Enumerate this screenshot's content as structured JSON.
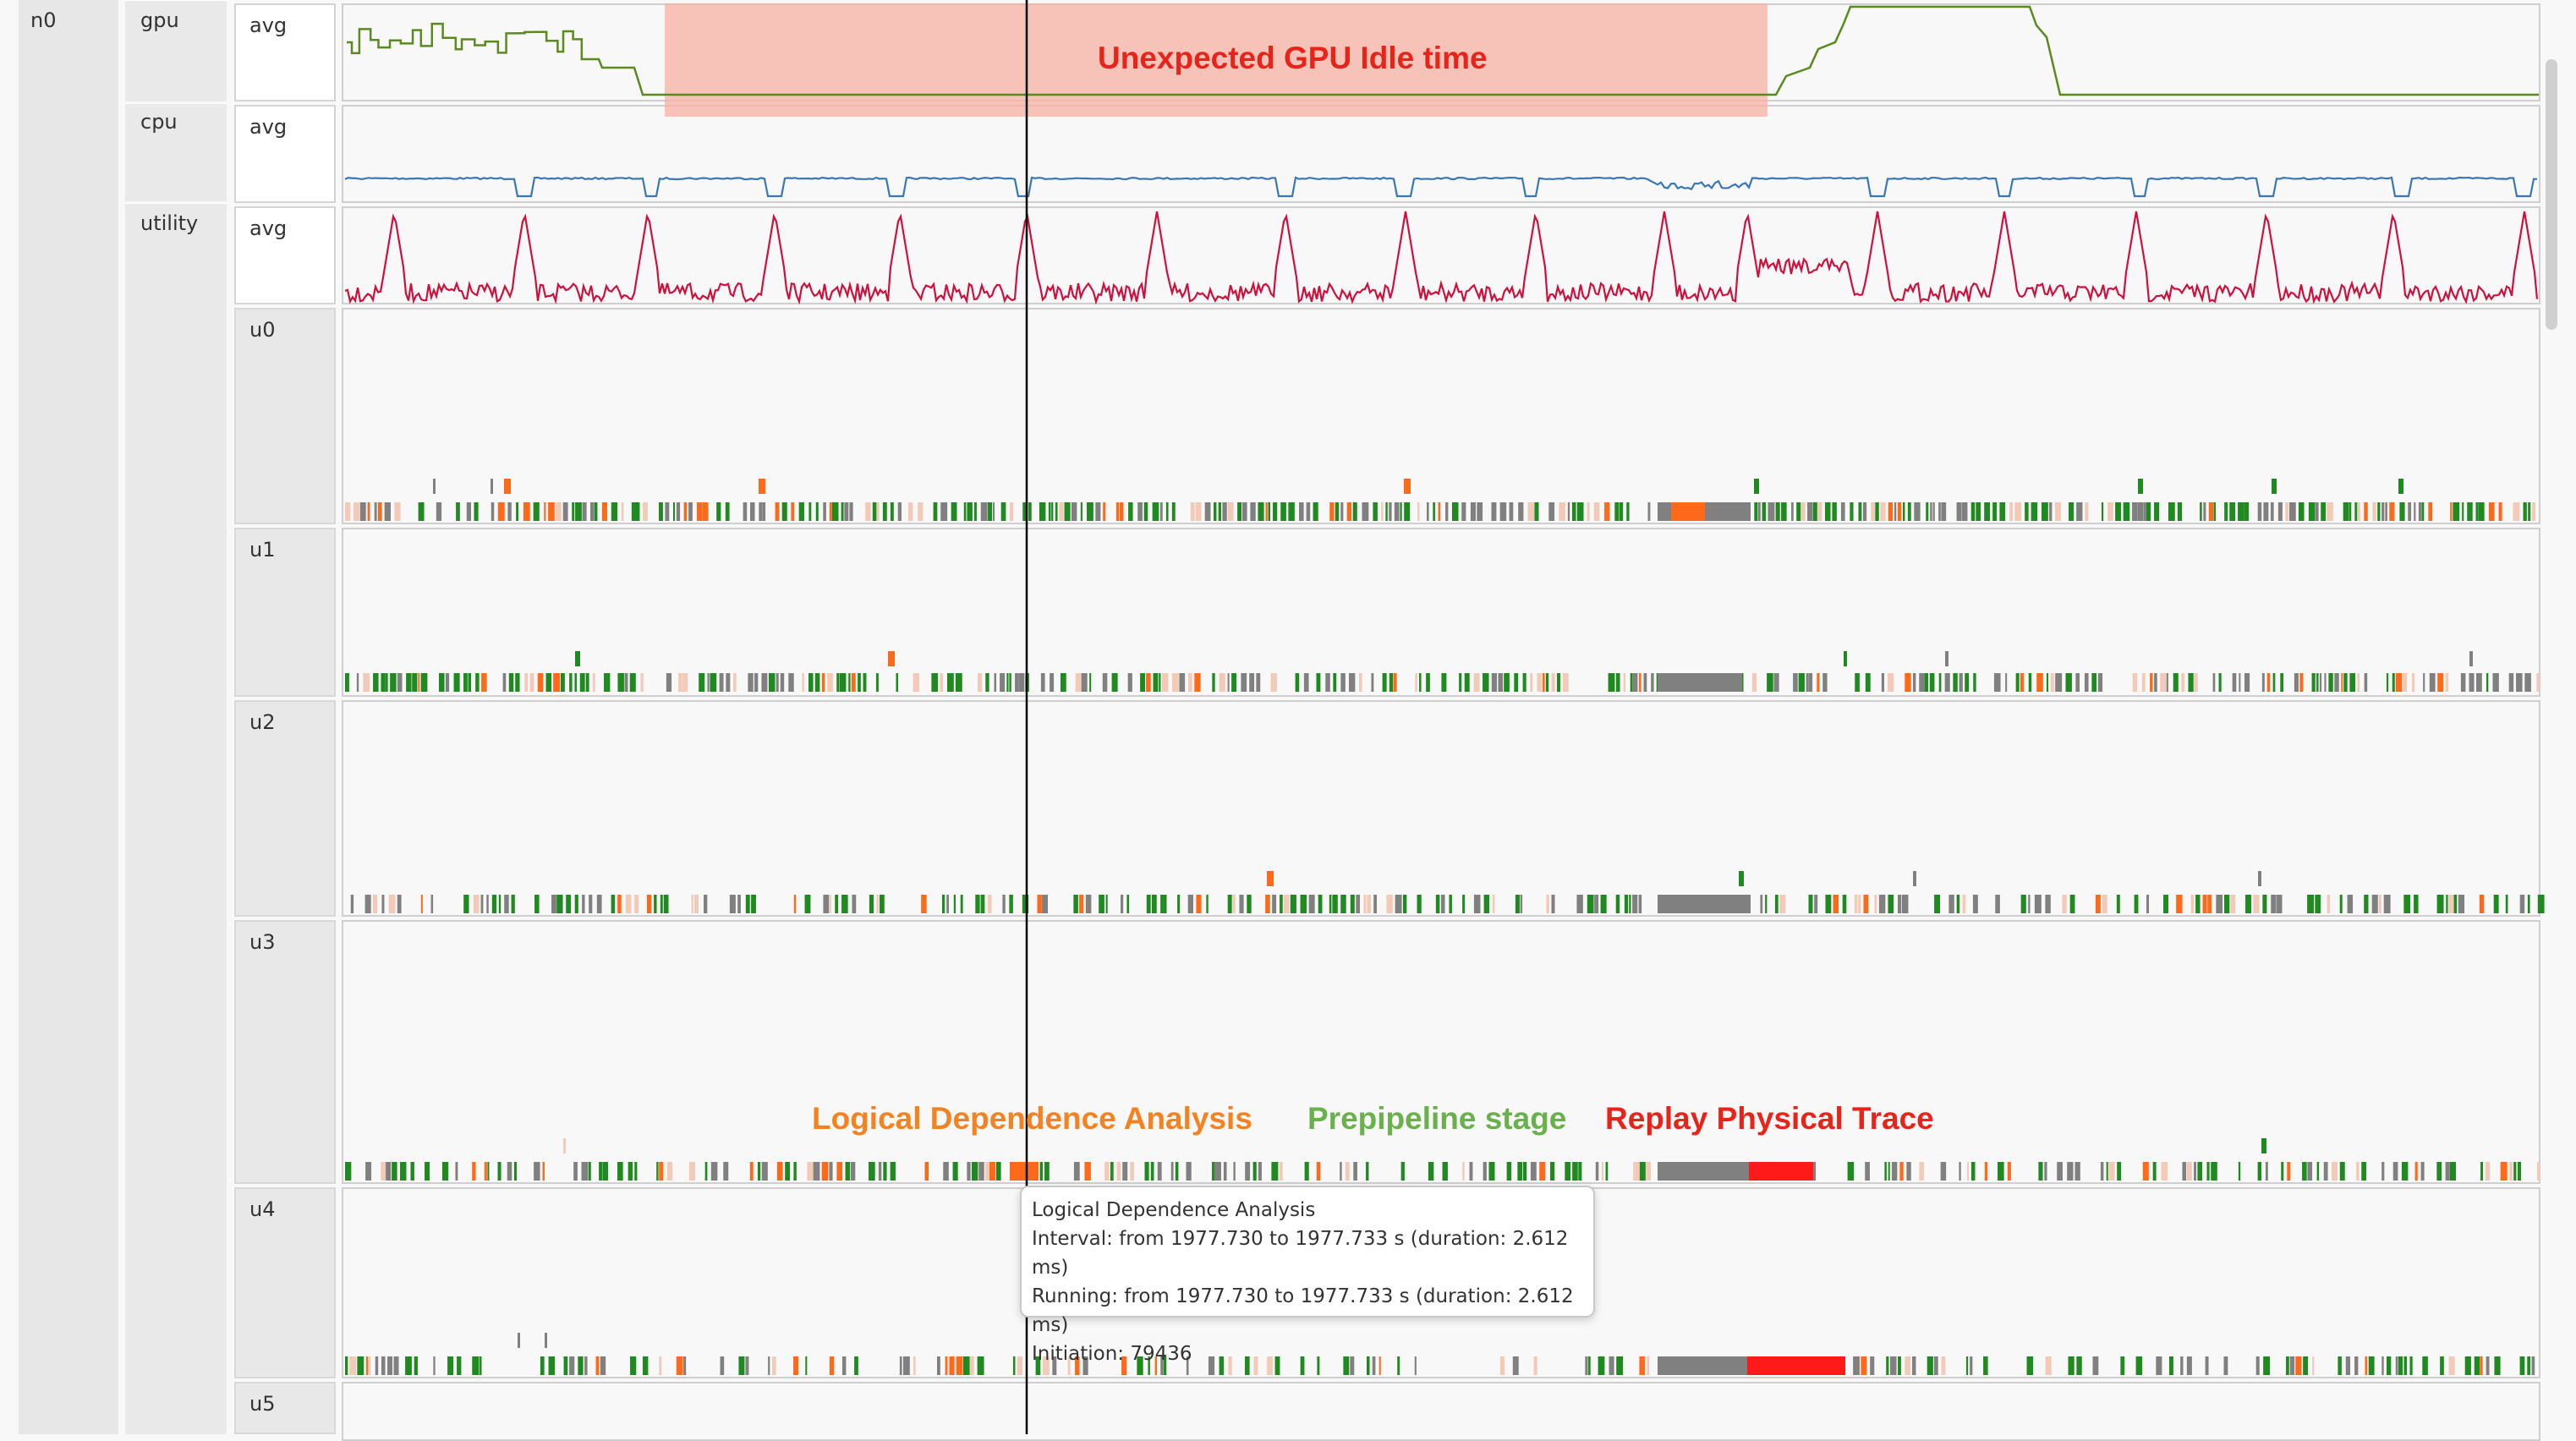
{
  "tree": {
    "node": "n0",
    "groups": [
      {
        "label": "gpu",
        "sub": "avg"
      },
      {
        "label": "cpu",
        "sub": "avg"
      },
      {
        "label": "utility",
        "sub": "avg"
      }
    ],
    "processors": [
      "u0",
      "u1",
      "u2",
      "u3",
      "u4",
      "u5"
    ]
  },
  "annotations": {
    "gpu_idle": "Unexpected GPU Idle time",
    "logical": "Logical Dependence Analysis",
    "prepipeline": "Prepipeline stage",
    "replay": "Replay Physical Trace"
  },
  "tooltip": {
    "title": "Logical Dependence Analysis",
    "interval": "Interval: from 1977.730 to 1977.733 s (duration: 2.612 ms)",
    "running": "Running: from 1977.730 to 1977.733 s (duration: 2.612 ms)",
    "initiation": "Initiation: 79436"
  },
  "colors": {
    "gpu_line": "#5b8a1e",
    "cpu_line": "#3a78b5",
    "util_line": "#d0103c",
    "idle_highlight": "#f7b2a3",
    "logical": "#f58220",
    "prepipeline": "#6ab04c",
    "replay": "#ff1a1a",
    "task_orange": "#ff6a1a",
    "task_green": "#1f8a1f",
    "task_gray": "#808080",
    "cursor": "#000000"
  }
}
